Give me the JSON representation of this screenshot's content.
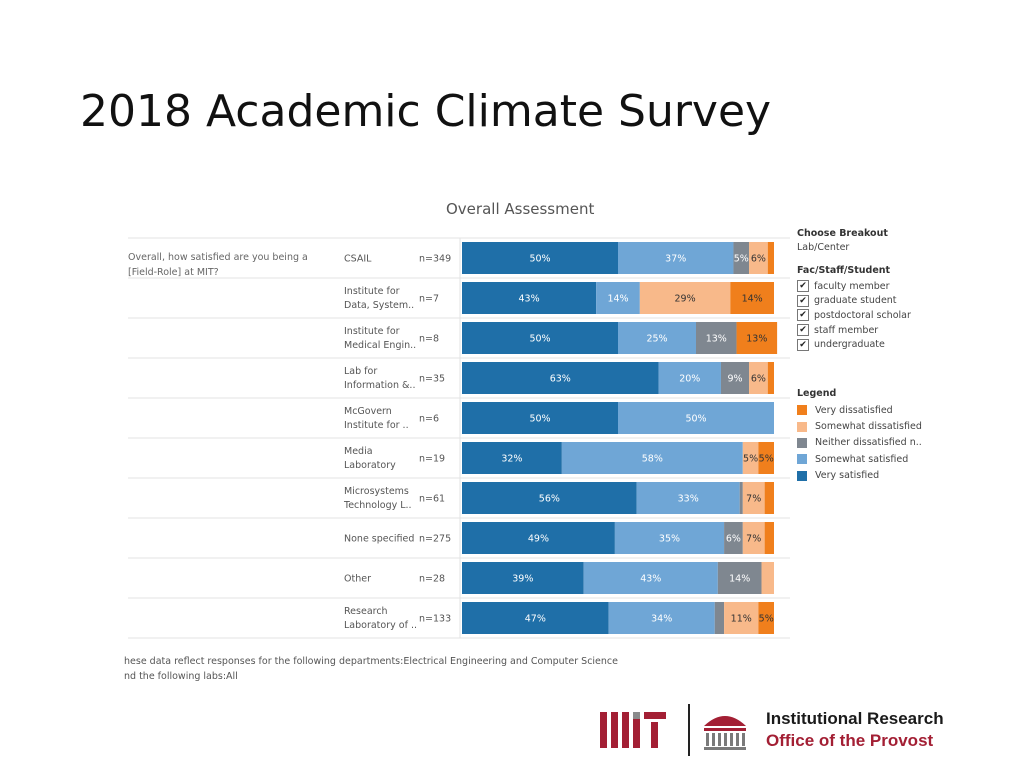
{
  "slide": {
    "title": "2018 Academic Climate Survey"
  },
  "chart_data": {
    "type": "bar",
    "orientation": "horizontal",
    "stacked": true,
    "title": "Overall Assessment",
    "question": "Overall, how satisfied are you being a [Field-Role] at MIT?",
    "categories": [
      {
        "label": "CSAIL",
        "n": "n=349"
      },
      {
        "label": "Institute for Data, System..",
        "n": "n=7"
      },
      {
        "label": "Institute for Medical Engin..",
        "n": "n=8"
      },
      {
        "label": "Lab for Information &..",
        "n": "n=35"
      },
      {
        "label": "McGovern Institute for ..",
        "n": "n=6"
      },
      {
        "label": "Media Laboratory",
        "n": "n=19"
      },
      {
        "label": "Microsystems Technology L..",
        "n": "n=61"
      },
      {
        "label": "None specified",
        "n": "n=275"
      },
      {
        "label": "Other",
        "n": "n=28"
      },
      {
        "label": "Research Laboratory of ..",
        "n": "n=133"
      }
    ],
    "series": [
      {
        "name": "Very satisfied",
        "color": "#1f6fa8",
        "values": [
          50,
          43,
          50,
          63,
          50,
          32,
          56,
          49,
          39,
          47
        ]
      },
      {
        "name": "Somewhat satisfied",
        "color": "#6fa6d6",
        "values": [
          37,
          14,
          25,
          20,
          50,
          58,
          33,
          35,
          43,
          34
        ]
      },
      {
        "name": "Neither dissatisfied n..",
        "color": "#7f8790",
        "values": [
          5,
          0,
          13,
          9,
          0,
          0,
          1,
          6,
          14,
          3
        ]
      },
      {
        "name": "Somewhat dissatisfied",
        "color": "#f8b98a",
        "values": [
          6,
          29,
          0,
          6,
          0,
          5,
          7,
          7,
          4,
          11
        ]
      },
      {
        "name": "Very dissatisfied",
        "color": "#f07f1c",
        "values": [
          2,
          14,
          13,
          2,
          0,
          5,
          3,
          3,
          0,
          5
        ]
      }
    ],
    "data_labels": [
      [
        "50%",
        "37%",
        "5%",
        "6%",
        ""
      ],
      [
        "43%",
        "14%",
        "",
        "29%",
        "14%"
      ],
      [
        "50%",
        "25%",
        "13%",
        "",
        "13%"
      ],
      [
        "63%",
        "20%",
        "9%",
        "6%",
        ""
      ],
      [
        "50%",
        "50%",
        "",
        "",
        ""
      ],
      [
        "32%",
        "58%",
        "",
        "5%",
        "5%"
      ],
      [
        "56%",
        "33%",
        "",
        "7%",
        ""
      ],
      [
        "49%",
        "35%",
        "6%",
        "7%",
        ""
      ],
      [
        "39%",
        "43%",
        "14%",
        "",
        ""
      ],
      [
        "47%",
        "34%",
        "",
        "11%",
        "5%"
      ]
    ],
    "xlim": [
      0,
      100
    ],
    "legend_position": "right"
  },
  "panel": {
    "breakout_header": "Choose Breakout",
    "breakout_value": "Lab/Center",
    "filter_header": "Fac/Staff/Student",
    "filters": [
      {
        "label": "faculty member",
        "checked": "✔"
      },
      {
        "label": "graduate student",
        "checked": "✔"
      },
      {
        "label": "postdoctoral scholar",
        "checked": "✔"
      },
      {
        "label": "staff member",
        "checked": "✔"
      },
      {
        "label": "undergraduate",
        "checked": "✔"
      }
    ],
    "legend_header": "Legend",
    "legend": [
      {
        "label": "Very dissatisfied",
        "color": "#f07f1c"
      },
      {
        "label": "Somewhat dissatisfied",
        "color": "#f8b98a"
      },
      {
        "label": "Neither dissatisfied n..",
        "color": "#7f8790"
      },
      {
        "label": "Somewhat satisfied",
        "color": "#6fa6d6"
      },
      {
        "label": "Very satisfied",
        "color": "#1f6fa8"
      }
    ]
  },
  "footnote": {
    "line1": "hese data reflect responses for the following departments:Electrical Engineering and Computer Science",
    "line2": "nd the following labs:All"
  },
  "logo": {
    "mark": "MIT",
    "line1": "Institutional Research",
    "line2": "Office of the Provost"
  }
}
